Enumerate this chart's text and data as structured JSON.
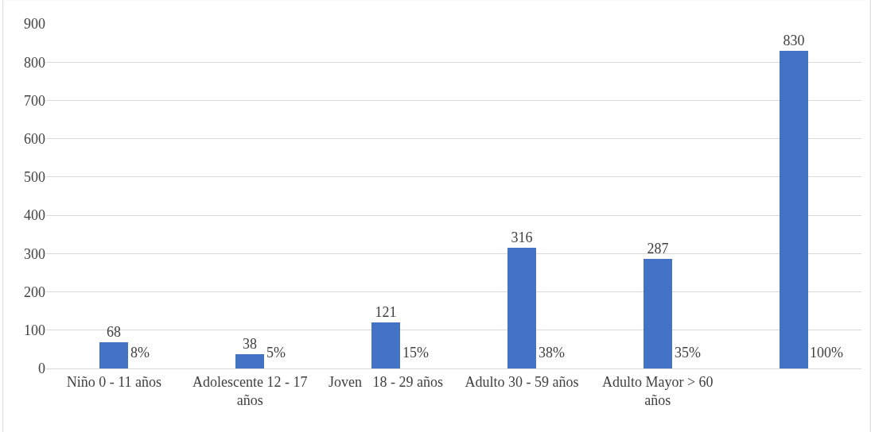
{
  "chart_data": {
    "type": "bar",
    "categories": [
      "Niño 0 - 11 años",
      "Adolescente 12 - 17 años",
      "Joven   18 - 29 años",
      "Adulto 30 - 59 años",
      "Adulto Mayor > 60 años",
      null
    ],
    "series": [
      {
        "color": "#4472c4",
        "values": [
          68,
          38,
          121,
          316,
          287,
          830
        ]
      }
    ],
    "data_labels": true,
    "ylim": [
      0,
      900
    ],
    "yticks": [
      0,
      100,
      200,
      300,
      400,
      500,
      600,
      700,
      800,
      900
    ],
    "grid": "y",
    "annotations": [
      {
        "text": "8%",
        "x": "Niño 0 - 11 años",
        "y": 0
      },
      {
        "text": "5%",
        "x": "Adolescente 12 - 17 años",
        "y": 0
      },
      {
        "text": "15%",
        "x": "Joven   18 - 29 años",
        "y": 0
      },
      {
        "text": "38%",
        "x": "Adulto 30 - 59 años",
        "y": 0
      },
      {
        "text": "35%",
        "x": "Adulto Mayor > 60 años",
        "y": 0
      },
      "100%"
    ]
  }
}
